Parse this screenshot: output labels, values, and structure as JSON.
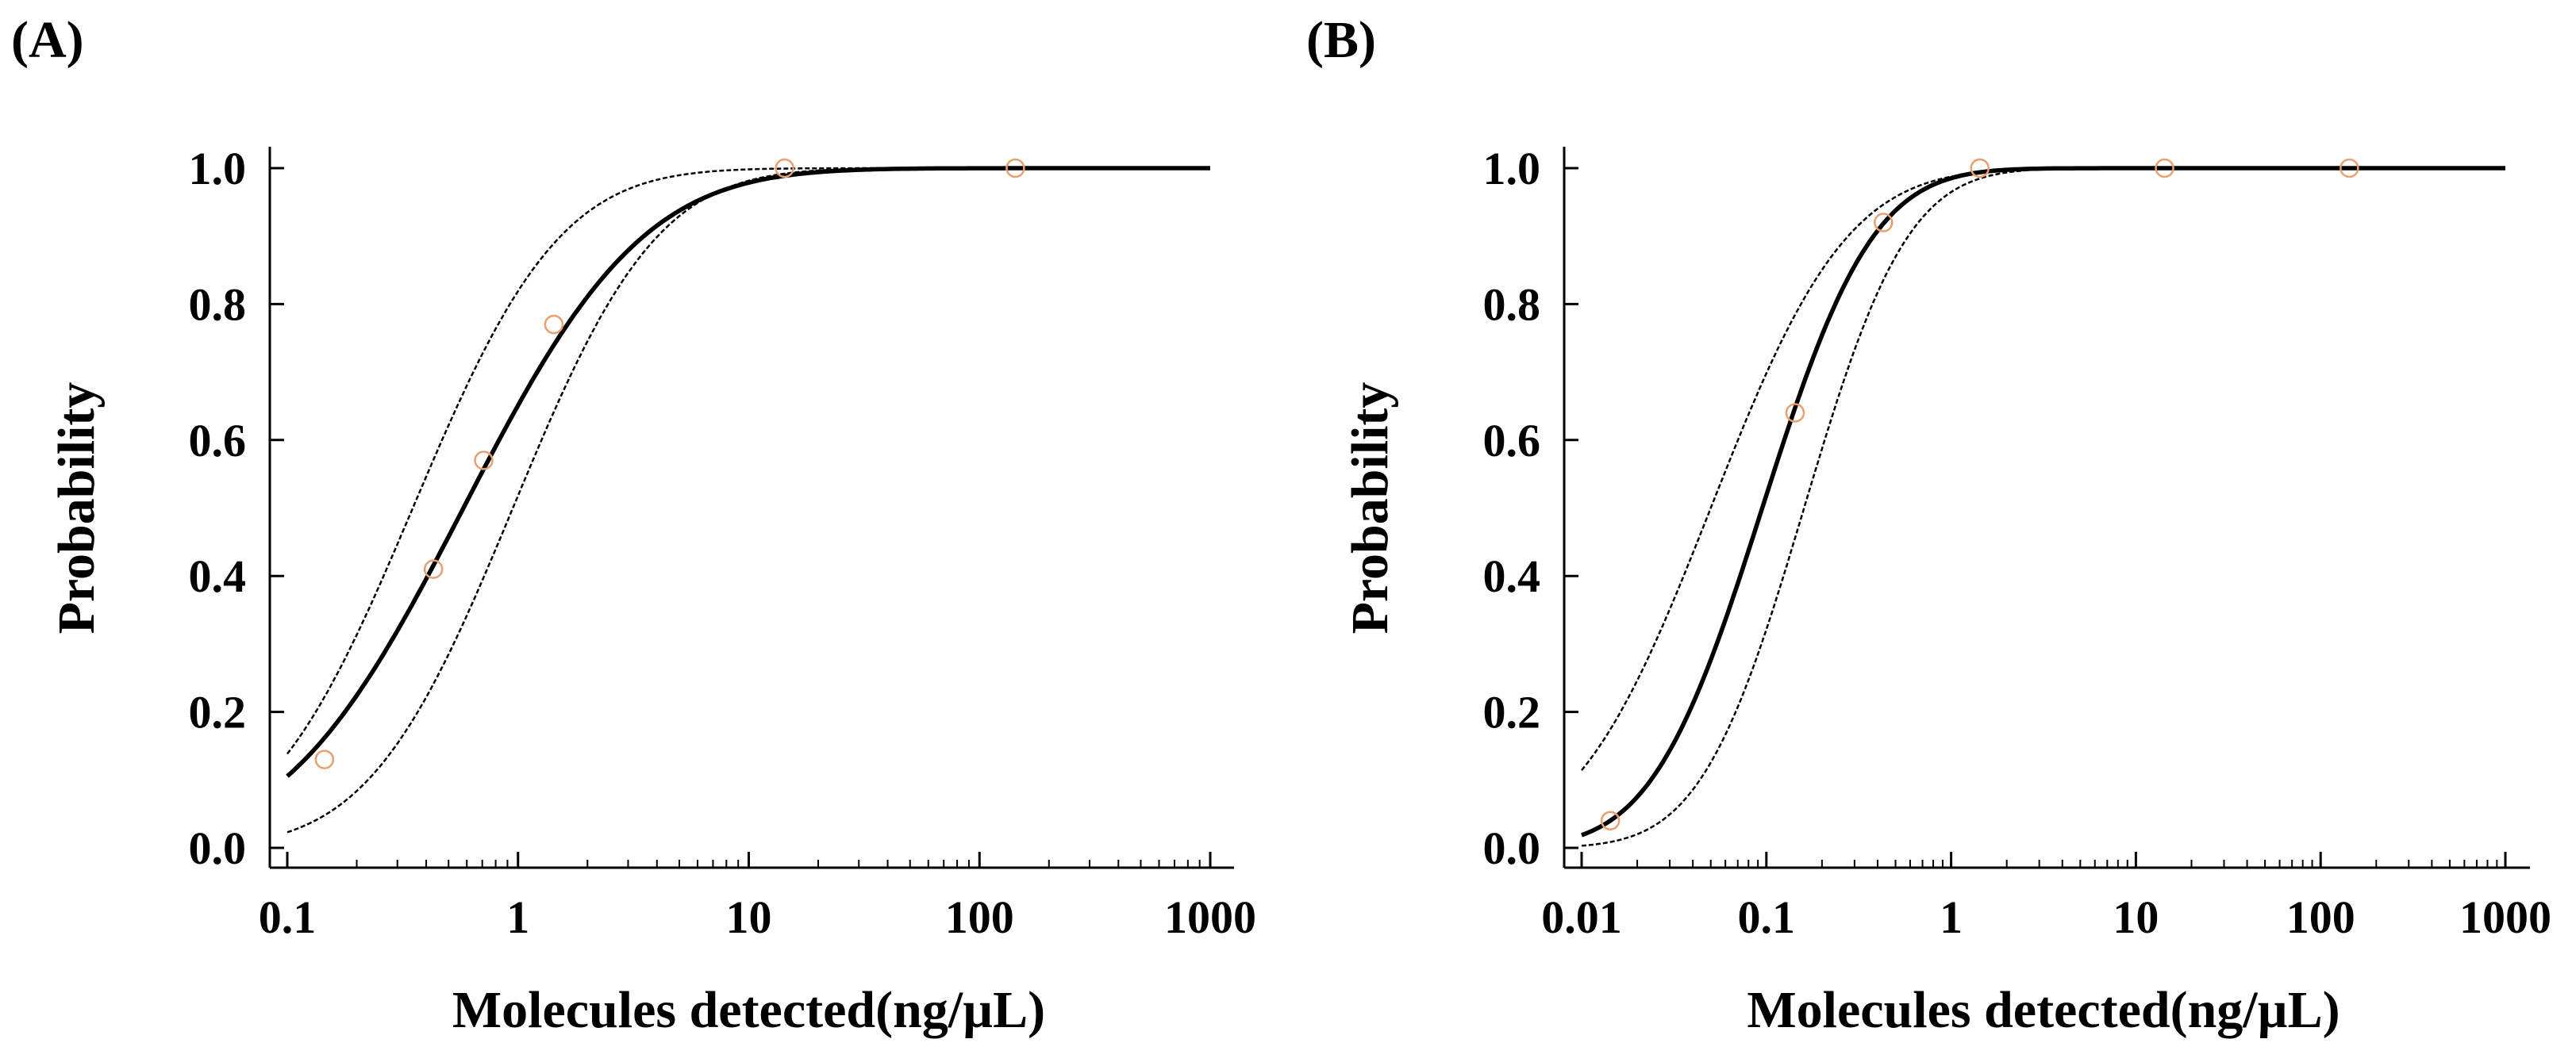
{
  "chart_data": [
    {
      "type": "line",
      "panel_label": "(A)",
      "xscale": "log",
      "xlim": [
        0.1,
        1000
      ],
      "ylim": [
        0.0,
        1.0
      ],
      "xlabel": "Molecules detected(ng/µL)",
      "ylabel": "Probability",
      "xticks": [
        {
          "value": 0.1,
          "label": "0.1"
        },
        {
          "value": 1,
          "label": "1"
        },
        {
          "value": 10,
          "label": "10"
        },
        {
          "value": 100,
          "label": "100"
        },
        {
          "value": 1000,
          "label": "1000"
        }
      ],
      "yticks": [
        {
          "value": 0.0,
          "label": "0.0"
        },
        {
          "value": 0.2,
          "label": "0.2"
        },
        {
          "value": 0.4,
          "label": "0.4"
        },
        {
          "value": 0.6,
          "label": "0.6"
        },
        {
          "value": 0.8,
          "label": "0.8"
        },
        {
          "value": 1.0,
          "label": "1.0"
        }
      ],
      "grid": false,
      "series": [
        {
          "name": "fit",
          "style": "solid",
          "model": "probit-log10",
          "x50": 0.58,
          "sigma": 0.61
        },
        {
          "name": "upper confidence bound",
          "style": "dashed",
          "model": "probit-log10",
          "x50": 0.35,
          "sigma": 0.5
        },
        {
          "name": "lower confidence bound",
          "style": "dashed",
          "model": "probit-log10",
          "x50": 0.95,
          "sigma": 0.49
        }
      ],
      "points": {
        "x": [
          0.145,
          0.43,
          0.71,
          1.43,
          14.3,
          143
        ],
        "y": [
          0.13,
          0.41,
          0.57,
          0.77,
          1.0,
          1.0
        ]
      },
      "colors": {
        "fit": "#000000",
        "points": "#e8a070"
      }
    },
    {
      "type": "line",
      "panel_label": "(B)",
      "xscale": "log",
      "xlim": [
        0.01,
        1000
      ],
      "ylim": [
        0.0,
        1.0
      ],
      "xlabel": "Molecules detected(ng/µL)",
      "ylabel": "Probability",
      "xticks": [
        {
          "value": 0.01,
          "label": "0.01"
        },
        {
          "value": 0.1,
          "label": "0.1"
        },
        {
          "value": 1,
          "label": "1"
        },
        {
          "value": 10,
          "label": "10"
        },
        {
          "value": 100,
          "label": "100"
        },
        {
          "value": 1000,
          "label": "1000"
        }
      ],
      "yticks": [
        {
          "value": 0.0,
          "label": "0.0"
        },
        {
          "value": 0.2,
          "label": "0.2"
        },
        {
          "value": 0.4,
          "label": "0.4"
        },
        {
          "value": 0.6,
          "label": "0.6"
        },
        {
          "value": 0.8,
          "label": "0.8"
        },
        {
          "value": 1.0,
          "label": "1.0"
        }
      ],
      "grid": false,
      "series": [
        {
          "name": "fit",
          "style": "solid",
          "model": "probit-log10",
          "x50": 0.095,
          "sigma": 0.47
        },
        {
          "name": "upper confidence bound",
          "style": "dashed",
          "model": "probit-log10",
          "x50": 0.05,
          "sigma": 0.58
        },
        {
          "name": "lower confidence bound",
          "style": "dashed",
          "model": "probit-log10",
          "x50": 0.16,
          "sigma": 0.44
        }
      ],
      "points": {
        "x": [
          0.0143,
          0.143,
          0.43,
          1.43,
          14.3,
          143
        ],
        "y": [
          0.04,
          0.64,
          0.92,
          1.0,
          1.0,
          1.0
        ]
      },
      "colors": {
        "fit": "#000000",
        "points": "#e8a070"
      }
    }
  ]
}
